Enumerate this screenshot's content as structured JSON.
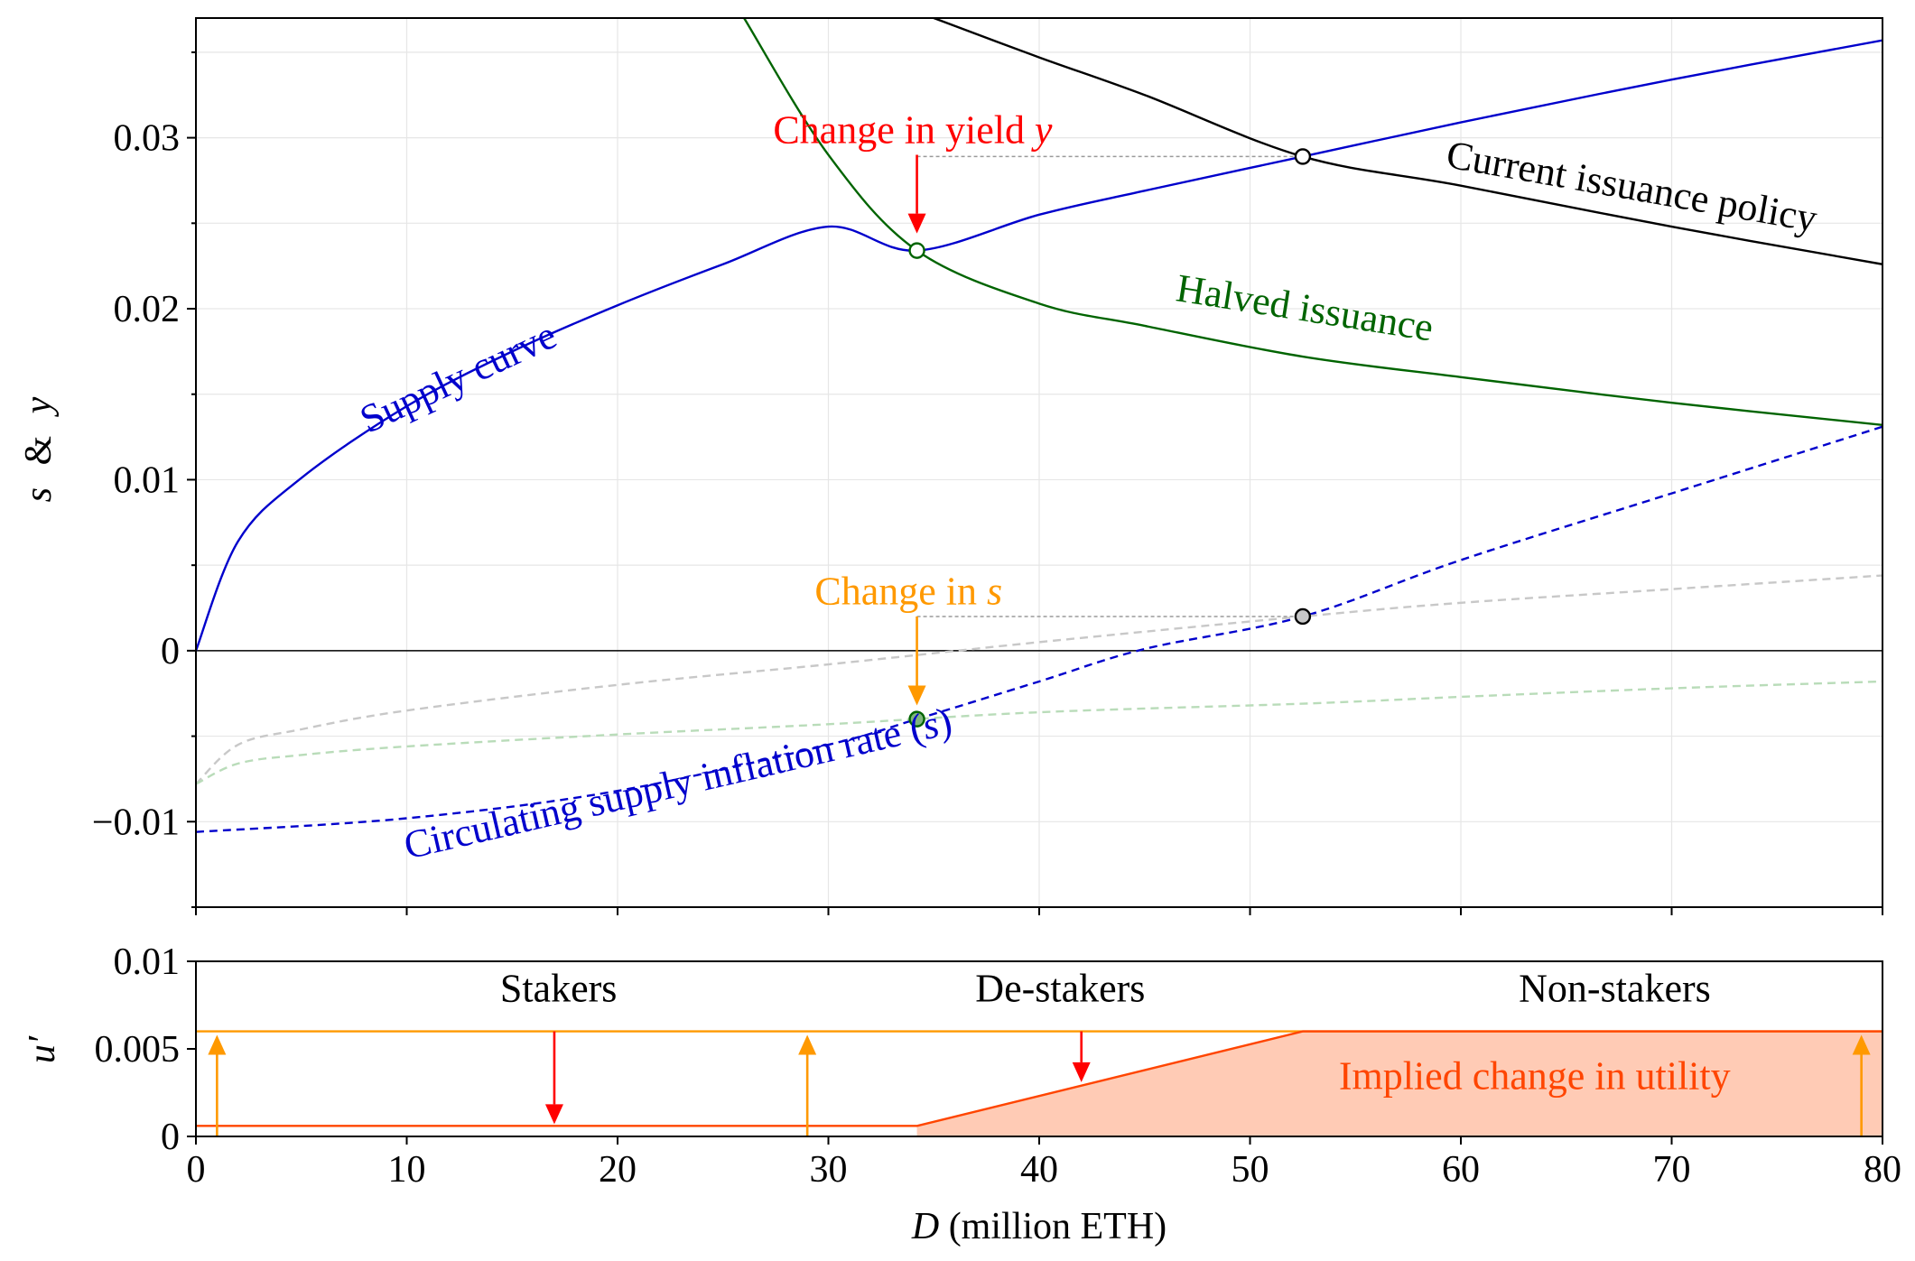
{
  "chart_data": [
    {
      "type": "line",
      "ylabel": "s & y",
      "ylabel_parts": [
        "s",
        "&",
        "y"
      ],
      "xlim": [
        0,
        80
      ],
      "ylim": [
        -0.015,
        0.037
      ],
      "yticks": [
        -0.01,
        0,
        0.01,
        0.02,
        0.03
      ],
      "ytick_labels": [
        "−0.01",
        "0",
        "0.01",
        "0.02",
        "0.03"
      ],
      "xticks": [
        0,
        10,
        20,
        30,
        40,
        50,
        60,
        70,
        80
      ],
      "grid": true,
      "series": [
        {
          "id": "supply",
          "color": "#0000cc",
          "style": "solid",
          "x": [
            0,
            2,
            5,
            10,
            15,
            20,
            25,
            30,
            34.2,
            40,
            45,
            52.5,
            60,
            70,
            80
          ],
          "y": [
            0,
            0.0064,
            0.0101,
            0.0143,
            0.0175,
            0.0202,
            0.0226,
            0.0248,
            0.0234,
            0.0255,
            0.0269,
            0.0289,
            0.0309,
            0.0334,
            0.0357
          ]
        },
        {
          "id": "current",
          "color": "#000000",
          "style": "solid",
          "x": [
            35,
            40,
            45,
            52.5,
            60,
            70,
            80
          ],
          "y": [
            0.037,
            0.0347,
            0.0325,
            0.0289,
            0.0272,
            0.0248,
            0.0226
          ]
        },
        {
          "id": "halved",
          "color": "#006400",
          "style": "solid",
          "x": [
            26,
            30,
            34.2,
            40,
            45,
            52.5,
            60,
            70,
            80
          ],
          "y": [
            0.037,
            0.029,
            0.0234,
            0.0203,
            0.019,
            0.0172,
            0.016,
            0.0145,
            0.0132
          ]
        },
        {
          "id": "circulating",
          "color": "#0000cc",
          "style": "dashed",
          "x": [
            0,
            10,
            20,
            30,
            34.2,
            40,
            45,
            52.5,
            60,
            70,
            80
          ],
          "y": [
            -0.0106,
            -0.0098,
            -0.0082,
            -0.0055,
            -0.004,
            -0.0018,
            0.0001,
            0.002,
            0.0053,
            0.0092,
            0.0131
          ]
        },
        {
          "id": "gray-faint",
          "color": "#c8c8c8",
          "style": "dashed",
          "x": [
            0,
            2,
            5,
            10,
            20,
            30,
            40,
            52.5,
            60,
            70,
            80
          ],
          "y": [
            -0.0078,
            -0.0055,
            -0.0046,
            -0.0035,
            -0.002,
            -0.0008,
            0.0005,
            0.002,
            0.0028,
            0.0036,
            0.0044
          ]
        },
        {
          "id": "green-faint",
          "color": "#b9dcb9",
          "style": "dashed",
          "x": [
            0,
            2,
            5,
            10,
            20,
            30,
            40,
            52.5,
            60,
            70,
            80
          ],
          "y": [
            -0.0078,
            -0.0066,
            -0.0061,
            -0.0056,
            -0.0049,
            -0.0043,
            -0.0036,
            -0.0031,
            -0.0027,
            -0.0022,
            -0.0018
          ]
        }
      ],
      "guides": [
        {
          "color": "#9a9a9a",
          "x": [
            34.2,
            52.5
          ],
          "y": [
            0.0289,
            0.0289
          ]
        },
        {
          "color": "#9a9a9a",
          "x": [
            34.2,
            52.5
          ],
          "y": [
            0.002,
            0.002
          ]
        }
      ],
      "points": [
        {
          "x": 52.5,
          "y": 0.0289,
          "fill": "#ffffff",
          "stroke": "#000000"
        },
        {
          "x": 34.2,
          "y": 0.0234,
          "fill": "#ffffff",
          "stroke": "#006400"
        },
        {
          "x": 52.5,
          "y": 0.002,
          "fill": "#c8c8c8",
          "stroke": "#000000"
        },
        {
          "x": 34.2,
          "y": -0.004,
          "fill": "#7fb57f",
          "stroke": "#006400"
        }
      ],
      "arrows": [
        {
          "x": 34.2,
          "y_from": 0.029,
          "y_to": 0.0244,
          "color": "#ff0000"
        },
        {
          "x": 34.2,
          "y_from": 0.002,
          "y_to": -0.0032,
          "color": "#ff9900"
        }
      ],
      "annotations": [
        {
          "text": "Change in yield ",
          "italic": "y",
          "x": 34.0,
          "y": 0.0297,
          "color": "#ff0000",
          "angle": 0
        },
        {
          "text": "Change in ",
          "italic": "s",
          "x": 33.8,
          "y": 0.0027,
          "color": "#ff9900",
          "angle": 0
        },
        {
          "text": "Supply curve",
          "x": 12.7,
          "y": 0.0153,
          "color": "#0000cc",
          "angle": -25
        },
        {
          "text": "Current issuance policy",
          "x": 68,
          "y": 0.0264,
          "color": "#000000",
          "angle": 10
        },
        {
          "text": "Halved issuance",
          "x": 52.5,
          "y": 0.0193,
          "color": "#006400",
          "angle": 9
        },
        {
          "text": "Circulating supply inflation rate (",
          "italic": "s",
          "tail": ")",
          "x": 23,
          "y": -0.0085,
          "color": "#0000cc",
          "angle": -13
        }
      ]
    },
    {
      "type": "area",
      "ylabel": "u′",
      "xlabel_main": "D",
      "xlabel_rest": " (million ETH)",
      "xlim": [
        0,
        80
      ],
      "ylim": [
        0,
        0.01
      ],
      "yticks": [
        0,
        0.005,
        0.01
      ],
      "ytick_labels": [
        "0",
        "0.005",
        "0.01"
      ],
      "xticks": [
        0,
        10,
        20,
        30,
        40,
        50,
        60,
        70,
        80
      ],
      "xtick_labels": [
        "0",
        "10",
        "20",
        "30",
        "40",
        "50",
        "60",
        "70",
        "80"
      ],
      "grid": false,
      "series": [
        {
          "id": "orange-level",
          "color": "#ff9900",
          "x": [
            0,
            80
          ],
          "y": [
            0.006,
            0.006
          ]
        },
        {
          "id": "implied-utility",
          "color": "#ff4500",
          "fill": "#ffcbb5",
          "x": [
            0,
            34.2,
            52.5,
            80
          ],
          "y": [
            0.0006,
            0.0006,
            0.006,
            0.006
          ]
        }
      ],
      "arrows": [
        {
          "x": 1,
          "y_from": 0,
          "y_to": 0.0058,
          "color": "#ff9900"
        },
        {
          "x": 29,
          "y_from": 0,
          "y_to": 0.0058,
          "color": "#ff9900"
        },
        {
          "x": 79,
          "y_from": 0,
          "y_to": 0.0058,
          "color": "#ff9900"
        },
        {
          "x": 17,
          "y_from": 0.006,
          "y_to": 0.0007,
          "color": "#ff0000"
        },
        {
          "x": 42,
          "y_from": 0.006,
          "y_to": 0.0031,
          "color": "#ff0000"
        }
      ],
      "annotations": [
        {
          "text": "Stakers",
          "x": 17.2,
          "y": 0.0077,
          "color": "#000000"
        },
        {
          "text": "De-stakers",
          "x": 41.0,
          "y": 0.0077,
          "color": "#000000"
        },
        {
          "text": "Non-stakers",
          "x": 67.3,
          "y": 0.0077,
          "color": "#000000"
        },
        {
          "text": "Implied change in utility",
          "x": 63.5,
          "y": 0.0027,
          "color": "#ff4500"
        }
      ]
    }
  ]
}
